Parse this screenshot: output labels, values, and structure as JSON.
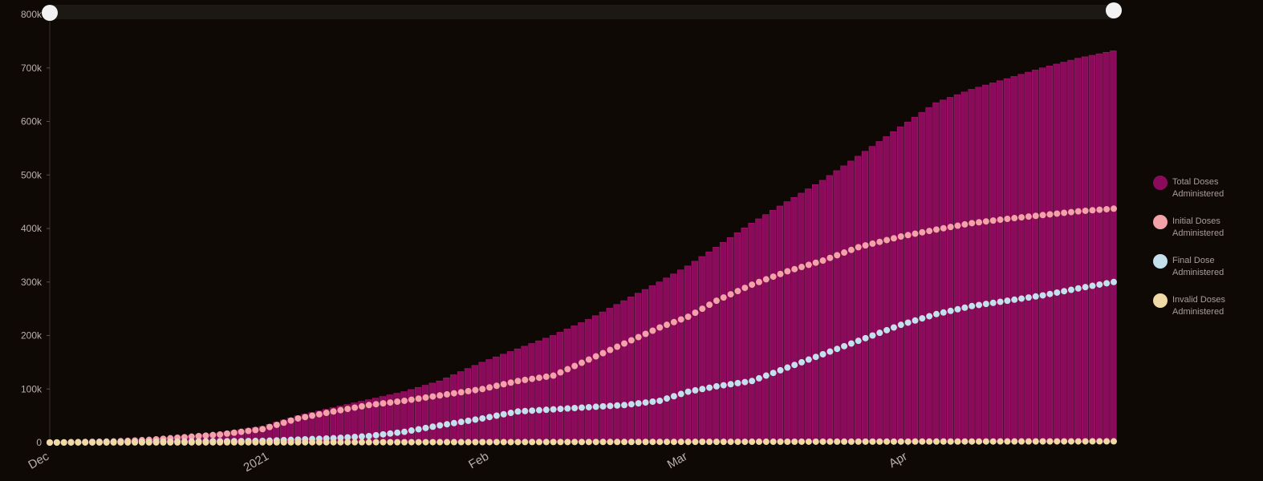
{
  "chart_data": {
    "type": "bar",
    "x_start": "2020-12-01",
    "x_end": "2021-04-30",
    "x_ticks": [
      {
        "label": "Dec",
        "date": "2020-12-01"
      },
      {
        "label": "2021",
        "date": "2021-01-01"
      },
      {
        "label": "Feb",
        "date": "2021-02-01"
      },
      {
        "label": "Mar",
        "date": "2021-03-01"
      },
      {
        "label": "Apr",
        "date": "2021-04-01"
      }
    ],
    "y_ticks": [
      {
        "label": "0",
        "value": 0
      },
      {
        "label": "100k",
        "value": 100000
      },
      {
        "label": "200k",
        "value": 200000
      },
      {
        "label": "300k",
        "value": 300000
      },
      {
        "label": "400k",
        "value": 400000
      },
      {
        "label": "500k",
        "value": 500000
      },
      {
        "label": "600k",
        "value": 600000
      },
      {
        "label": "700k",
        "value": 700000
      },
      {
        "label": "800k",
        "value": 800000
      }
    ],
    "ylim": [
      0,
      800000
    ],
    "grid": false,
    "legend_position": "right",
    "series": [
      {
        "name": "Total Doses Administered",
        "legend_lines": [
          "Total Doses",
          "Administered"
        ],
        "mark": "bar",
        "color": "#8a0a5c",
        "points": [
          [
            "2020-12-01",
            0
          ],
          [
            "2020-12-10",
            2000
          ],
          [
            "2020-12-15",
            6000
          ],
          [
            "2020-12-20",
            12000
          ],
          [
            "2020-12-25",
            18000
          ],
          [
            "2020-12-31",
            30000
          ],
          [
            "2021-01-05",
            50000
          ],
          [
            "2021-01-10",
            65000
          ],
          [
            "2021-01-15",
            80000
          ],
          [
            "2021-01-20",
            95000
          ],
          [
            "2021-01-25",
            115000
          ],
          [
            "2021-01-31",
            150000
          ],
          [
            "2021-02-05",
            175000
          ],
          [
            "2021-02-10",
            200000
          ],
          [
            "2021-02-15",
            230000
          ],
          [
            "2021-02-20",
            265000
          ],
          [
            "2021-02-25",
            300000
          ],
          [
            "2021-03-01",
            330000
          ],
          [
            "2021-03-05",
            365000
          ],
          [
            "2021-03-10",
            410000
          ],
          [
            "2021-03-15",
            450000
          ],
          [
            "2021-03-20",
            490000
          ],
          [
            "2021-03-25",
            535000
          ],
          [
            "2021-03-31",
            590000
          ],
          [
            "2021-04-05",
            635000
          ],
          [
            "2021-04-10",
            660000
          ],
          [
            "2021-04-15",
            680000
          ],
          [
            "2021-04-20",
            700000
          ],
          [
            "2021-04-25",
            718000
          ],
          [
            "2021-04-30",
            732000
          ]
        ]
      },
      {
        "name": "Initial Doses Administered",
        "legend_lines": [
          "Initial Doses",
          "Administered"
        ],
        "mark": "dots",
        "color": "#f2a2a8",
        "points": [
          [
            "2020-12-01",
            0
          ],
          [
            "2020-12-10",
            2000
          ],
          [
            "2020-12-15",
            5000
          ],
          [
            "2020-12-20",
            10000
          ],
          [
            "2020-12-25",
            15000
          ],
          [
            "2020-12-31",
            25000
          ],
          [
            "2021-01-05",
            45000
          ],
          [
            "2021-01-10",
            58000
          ],
          [
            "2021-01-15",
            70000
          ],
          [
            "2021-01-20",
            78000
          ],
          [
            "2021-01-25",
            88000
          ],
          [
            "2021-01-31",
            100000
          ],
          [
            "2021-02-05",
            115000
          ],
          [
            "2021-02-10",
            125000
          ],
          [
            "2021-02-15",
            155000
          ],
          [
            "2021-02-20",
            185000
          ],
          [
            "2021-02-25",
            215000
          ],
          [
            "2021-03-01",
            235000
          ],
          [
            "2021-03-05",
            265000
          ],
          [
            "2021-03-10",
            295000
          ],
          [
            "2021-03-15",
            320000
          ],
          [
            "2021-03-20",
            340000
          ],
          [
            "2021-03-25",
            365000
          ],
          [
            "2021-03-31",
            385000
          ],
          [
            "2021-04-05",
            398000
          ],
          [
            "2021-04-10",
            410000
          ],
          [
            "2021-04-15",
            418000
          ],
          [
            "2021-04-20",
            425000
          ],
          [
            "2021-04-25",
            432000
          ],
          [
            "2021-04-30",
            437000
          ]
        ]
      },
      {
        "name": "Final Dose Administered",
        "legend_lines": [
          "Final Dose",
          "Administered"
        ],
        "mark": "dots",
        "color": "#c3e0ec",
        "points": [
          [
            "2020-12-01",
            0
          ],
          [
            "2020-12-31",
            3000
          ],
          [
            "2021-01-10",
            8000
          ],
          [
            "2021-01-15",
            12000
          ],
          [
            "2021-01-20",
            20000
          ],
          [
            "2021-01-25",
            32000
          ],
          [
            "2021-01-31",
            45000
          ],
          [
            "2021-02-05",
            58000
          ],
          [
            "2021-02-10",
            62000
          ],
          [
            "2021-02-15",
            66000
          ],
          [
            "2021-02-20",
            70000
          ],
          [
            "2021-02-25",
            78000
          ],
          [
            "2021-03-01",
            95000
          ],
          [
            "2021-03-05",
            105000
          ],
          [
            "2021-03-10",
            115000
          ],
          [
            "2021-03-15",
            140000
          ],
          [
            "2021-03-20",
            165000
          ],
          [
            "2021-03-25",
            190000
          ],
          [
            "2021-03-31",
            220000
          ],
          [
            "2021-04-05",
            240000
          ],
          [
            "2021-04-10",
            255000
          ],
          [
            "2021-04-15",
            265000
          ],
          [
            "2021-04-20",
            275000
          ],
          [
            "2021-04-25",
            288000
          ],
          [
            "2021-04-30",
            300000
          ]
        ]
      },
      {
        "name": "Invalid Doses Administered",
        "legend_lines": [
          "Invalid Doses",
          "Administered"
        ],
        "mark": "dots",
        "color": "#f0d9a4",
        "points": [
          [
            "2020-12-01",
            0
          ],
          [
            "2021-01-15",
            500
          ],
          [
            "2021-02-15",
            1000
          ],
          [
            "2021-03-15",
            1500
          ],
          [
            "2021-04-15",
            2000
          ],
          [
            "2021-04-30",
            2200
          ]
        ]
      }
    ]
  },
  "slider": {
    "range_start": "2020-12-01",
    "range_end": "2021-04-30"
  }
}
